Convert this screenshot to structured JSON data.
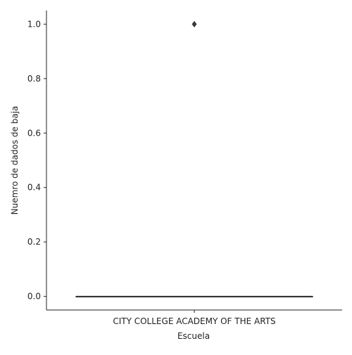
{
  "chart_data": {
    "type": "box",
    "title": "",
    "xlabel": "Escuela",
    "ylabel": "Nuemro de dados de baja",
    "categories": [
      "CITY COLLEGE ACADEMY OF THE ARTS"
    ],
    "ylim": [
      -0.05,
      1.05
    ],
    "yticks": [
      0.0,
      0.2,
      0.4,
      0.6,
      0.8,
      1.0
    ],
    "ytick_labels": [
      "0.0",
      "0.2",
      "0.4",
      "0.6",
      "0.8",
      "1.0"
    ],
    "boxes": [
      {
        "category": "CITY COLLEGE ACADEMY OF THE ARTS",
        "min": 0,
        "q1": 0,
        "median": 0,
        "q3": 0,
        "max": 0,
        "outliers": [
          1.0
        ]
      }
    ],
    "colors": {
      "box": "#333333",
      "axis": "#222222",
      "outlier": "#3a3a3a"
    },
    "grid": false
  }
}
